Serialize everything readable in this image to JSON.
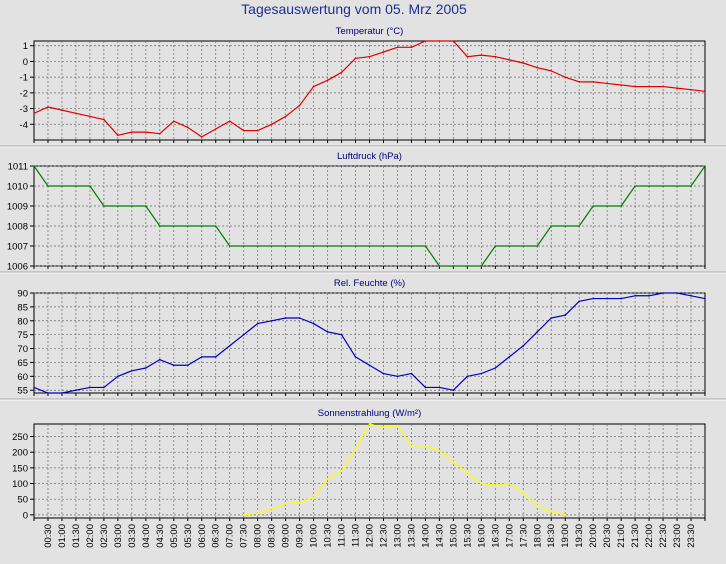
{
  "page_title": "Tagesauswertung vom 05. Mrz 2005",
  "colors": {
    "title": "#1e2e96",
    "panel_title": "#000080",
    "background": "#e2e2e2",
    "plot_bg": "#e2e2e2",
    "grid": "#6a6a6a",
    "axis": "#000000"
  },
  "x_labels": [
    "00:30",
    "01:00",
    "01:30",
    "02:00",
    "02:30",
    "03:00",
    "03:30",
    "04:00",
    "04:30",
    "05:00",
    "05:30",
    "06:00",
    "06:30",
    "07:00",
    "07:30",
    "08:00",
    "08:30",
    "09:00",
    "09:30",
    "10:00",
    "10:30",
    "11:00",
    "11:30",
    "12:00",
    "12:30",
    "13:00",
    "13:30",
    "14:00",
    "14:30",
    "15:00",
    "15:30",
    "16:00",
    "16:30",
    "17:00",
    "17:30",
    "18:00",
    "18:30",
    "19:00",
    "19:30",
    "20:00",
    "20:30",
    "21:00",
    "21:30",
    "22:00",
    "22:30",
    "23:00",
    "23:30"
  ],
  "chart_data": [
    {
      "type": "line",
      "title": "Temperatur (°C)",
      "color": "#e00000",
      "ylim": [
        -5,
        1.3
      ],
      "yticks": [
        -4,
        -3,
        -2,
        -1,
        0,
        1
      ],
      "x": [
        "00:00",
        "00:30",
        "01:00",
        "01:30",
        "02:00",
        "02:30",
        "03:00",
        "03:30",
        "04:00",
        "04:30",
        "05:00",
        "05:30",
        "06:00",
        "06:30",
        "07:00",
        "07:30",
        "08:00",
        "08:30",
        "09:00",
        "09:30",
        "10:00",
        "10:30",
        "11:00",
        "11:30",
        "12:00",
        "12:30",
        "13:00",
        "13:30",
        "14:00",
        "14:30",
        "15:00",
        "15:30",
        "16:00",
        "16:30",
        "17:00",
        "17:30",
        "18:00",
        "18:30",
        "19:00",
        "19:30",
        "20:00",
        "20:30",
        "21:00",
        "21:30",
        "22:00",
        "22:30",
        "23:00",
        "23:30",
        "00:00"
      ],
      "values": [
        -3.3,
        -2.9,
        -3.1,
        -3.3,
        -3.5,
        -3.7,
        -4.7,
        -4.5,
        -4.5,
        -4.6,
        -3.8,
        -4.2,
        -4.8,
        -4.3,
        -3.8,
        -4.4,
        -4.4,
        -4.0,
        -3.5,
        -2.8,
        -1.6,
        -1.2,
        -0.7,
        0.2,
        0.3,
        0.6,
        0.9,
        0.9,
        1.4,
        1.4,
        1.3,
        0.3,
        0.4,
        0.3,
        0.1,
        -0.1,
        -0.4,
        -0.6,
        -1.0,
        -1.3,
        -1.3,
        -1.4,
        -1.5,
        -1.6,
        -1.6,
        -1.6,
        -1.7,
        -1.8,
        -1.9
      ]
    },
    {
      "type": "line",
      "title": "Luftdruck (hPa)",
      "color": "#008000",
      "ylim": [
        1006,
        1011
      ],
      "yticks": [
        1006,
        1007,
        1008,
        1009,
        1010,
        1011
      ],
      "x": [
        "00:00",
        "00:30",
        "01:00",
        "01:30",
        "02:00",
        "02:30",
        "03:00",
        "03:30",
        "04:00",
        "04:30",
        "05:00",
        "05:30",
        "06:00",
        "06:30",
        "07:00",
        "07:30",
        "08:00",
        "08:30",
        "09:00",
        "09:30",
        "10:00",
        "10:30",
        "11:00",
        "11:30",
        "12:00",
        "12:30",
        "13:00",
        "13:30",
        "14:00",
        "14:30",
        "15:00",
        "15:30",
        "16:00",
        "16:30",
        "17:00",
        "17:30",
        "18:00",
        "18:30",
        "19:00",
        "19:30",
        "20:00",
        "20:30",
        "21:00",
        "21:30",
        "22:00",
        "22:30",
        "23:00",
        "23:30",
        "00:00"
      ],
      "values": [
        1011,
        1010,
        1010,
        1010,
        1010,
        1009,
        1009,
        1009,
        1009,
        1008,
        1008,
        1008,
        1008,
        1008,
        1007,
        1007,
        1007,
        1007,
        1007,
        1007,
        1007,
        1007,
        1007,
        1007,
        1007,
        1007,
        1007,
        1007,
        1007,
        1006,
        1006,
        1006,
        1006,
        1007,
        1007,
        1007,
        1007,
        1008,
        1008,
        1008,
        1009,
        1009,
        1009,
        1010,
        1010,
        1010,
        1010,
        1010,
        1011
      ]
    },
    {
      "type": "line",
      "title": "Rel. Feuchte (%)",
      "color": "#0000c0",
      "ylim": [
        54,
        90
      ],
      "yticks": [
        55,
        60,
        65,
        70,
        75,
        80,
        85,
        90
      ],
      "x": [
        "00:00",
        "00:30",
        "01:00",
        "01:30",
        "02:00",
        "02:30",
        "03:00",
        "03:30",
        "04:00",
        "04:30",
        "05:00",
        "05:30",
        "06:00",
        "06:30",
        "07:00",
        "07:30",
        "08:00",
        "08:30",
        "09:00",
        "09:30",
        "10:00",
        "10:30",
        "11:00",
        "11:30",
        "12:00",
        "12:30",
        "13:00",
        "13:30",
        "14:00",
        "14:30",
        "15:00",
        "15:30",
        "16:00",
        "16:30",
        "17:00",
        "17:30",
        "18:00",
        "18:30",
        "19:00",
        "19:30",
        "20:00",
        "20:30",
        "21:00",
        "21:30",
        "22:00",
        "22:30",
        "23:00",
        "23:30",
        "00:00"
      ],
      "values": [
        56,
        54,
        54,
        55,
        56,
        56,
        60,
        62,
        63,
        66,
        64,
        64,
        67,
        67,
        71,
        75,
        79,
        80,
        81,
        81,
        79,
        76,
        75,
        67,
        64,
        61,
        60,
        61,
        56,
        56,
        55,
        60,
        61,
        63,
        67,
        71,
        76,
        81,
        82,
        87,
        88,
        88,
        88,
        89,
        89,
        90,
        90,
        89,
        88
      ]
    },
    {
      "type": "line",
      "title": "Sonnenstrahlung (W/m²)",
      "color": "#ffff00",
      "ylim": [
        -10,
        290
      ],
      "yticks": [
        0,
        50,
        100,
        150,
        200,
        250
      ],
      "x": [
        "07:30",
        "08:00",
        "08:30",
        "09:00",
        "09:30",
        "10:00",
        "10:30",
        "11:00",
        "11:30",
        "12:00",
        "12:30",
        "13:00",
        "13:30",
        "14:00",
        "14:30",
        "15:00",
        "15:30",
        "16:00",
        "16:30",
        "17:00",
        "17:30",
        "18:00",
        "18:30",
        "19:00"
      ],
      "values": [
        0,
        5,
        20,
        35,
        40,
        55,
        115,
        140,
        210,
        290,
        280,
        285,
        220,
        220,
        205,
        170,
        135,
        100,
        95,
        100,
        70,
        30,
        10,
        0
      ]
    }
  ]
}
